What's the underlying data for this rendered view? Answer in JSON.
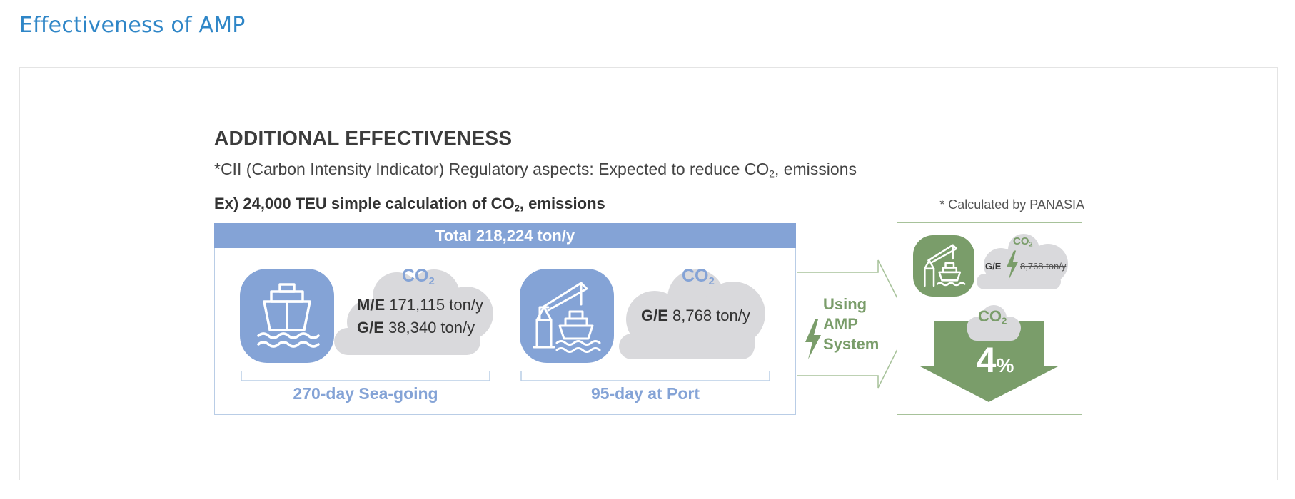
{
  "page_title": "Effectiveness of AMP",
  "heading": "ADDITIONAL EFFECTIVENESS",
  "subtitle": {
    "before": "*CII (Carbon Intensity Indicator) Regulatory aspects: Expected to reduce CO",
    "sub": "2",
    "after": ", emissions"
  },
  "example": {
    "before": "Ex) 24,000 TEU simple calculation of CO",
    "sub": "2",
    "after": ", emissions"
  },
  "calc_note": "* Calculated by PANASIA",
  "total": "Total  218,224 ton/y",
  "co2": {
    "main": "CO",
    "sub": "2"
  },
  "sea": {
    "me_label": "M/E",
    "me_value": "171,115 ton/y",
    "ge_label": "G/E",
    "ge_value": "38,340 ton/y",
    "caption": "270-day Sea-going"
  },
  "port": {
    "ge_label": "G/E",
    "ge_value": "8,768 ton/y",
    "caption": "95-day at Port"
  },
  "amp": {
    "line1": "Using",
    "line2": "AMP",
    "line3": "System"
  },
  "result": {
    "ge_label": "G/E",
    "ge_value_struck": "8,768 ton/y",
    "reduction_number": "4",
    "reduction_unit": "%"
  },
  "colors": {
    "title_blue": "#2f86c7",
    "accent_blue": "#84a3d6",
    "accent_green": "#7a9d6a",
    "cloud_gray": "#d9d9dc"
  },
  "icons": [
    "ship-icon",
    "port-crane-ship-icon",
    "lightning-bolt-icon",
    "co2-cloud-icon",
    "down-arrow-icon"
  ]
}
